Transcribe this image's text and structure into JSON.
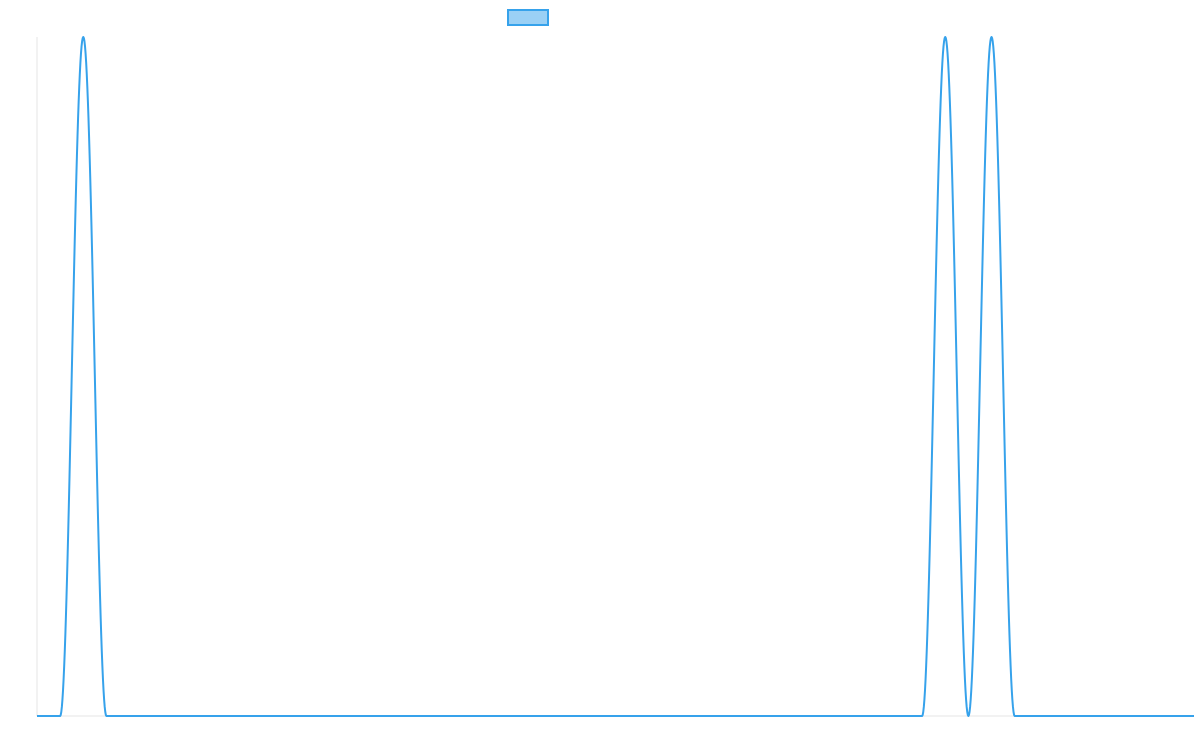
{
  "chart_data": {
    "type": "line",
    "title": "",
    "xlabel": "",
    "ylabel": "",
    "legend": {
      "placement": "top-center",
      "entries": [
        {
          "name": "",
          "color": "#36a2eb",
          "fill": "#9ad0f5"
        }
      ]
    },
    "grid": false,
    "xlim": [
      0,
      100
    ],
    "ylim": [
      0,
      1
    ],
    "series": [
      {
        "name": "",
        "color": "#36a2eb",
        "peaks": [
          {
            "center": 4,
            "half_width": 2
          },
          {
            "center": 78.5,
            "half_width": 2
          },
          {
            "center": 82.5,
            "half_width": 2
          }
        ]
      }
    ]
  }
}
